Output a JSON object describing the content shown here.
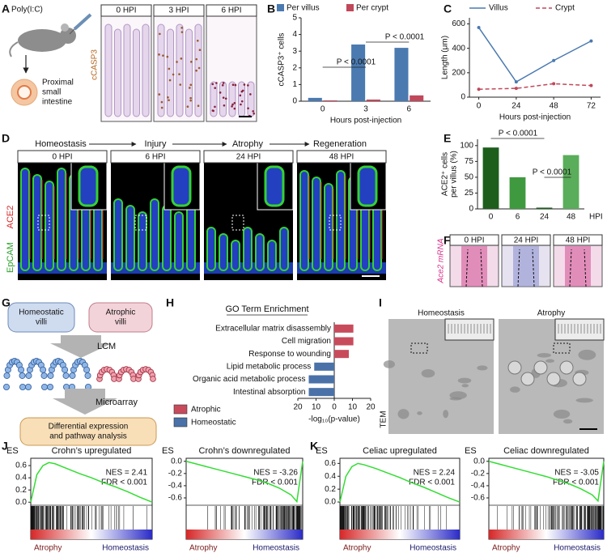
{
  "panel_letters": [
    "A",
    "B",
    "C",
    "D",
    "E",
    "F",
    "G",
    "H",
    "I",
    "J",
    "K"
  ],
  "panel_a": {
    "treatment": "Poly(I:C)",
    "tissue": [
      "Proximal",
      "small",
      "intestine"
    ],
    "stain": "cCASP3",
    "images": [
      "0 HPI",
      "3 HPI",
      "6 HPI"
    ]
  },
  "panel_d": {
    "stages": [
      "Homeostasis",
      "Injury",
      "Atrophy",
      "Regeneration"
    ],
    "images": [
      "0 HPI",
      "6 HPI",
      "24 HPI",
      "48 HPI"
    ],
    "stains": [
      "EpCAM",
      "ACE2"
    ]
  },
  "panel_f": {
    "images": [
      "0 HPI",
      "24 HPI",
      "48 HPI"
    ],
    "stain": "Ace2 mRNA"
  },
  "panel_g": {
    "homeostatic": [
      "Homeostatic",
      "villi"
    ],
    "atrophic": [
      "Atrophic",
      "villi"
    ],
    "step1": "LCM",
    "step2": "Microarray",
    "result": [
      "Differential expression",
      "and pathway analysis"
    ]
  },
  "panel_i": {
    "images": [
      "Homeostasis",
      "Atrophy"
    ],
    "method": "TEM"
  },
  "chart_data": [
    {
      "type": "bar",
      "ylabel": "cCASP3⁺ cells",
      "xlabel": "Hours post-injection",
      "categories": [
        "0",
        "3",
        "6"
      ],
      "series": [
        {
          "name": "Per villus",
          "color": "#4a7ab0",
          "values": [
            0.2,
            3.4,
            3.2
          ]
        },
        {
          "name": "Per crypt",
          "color": "#c0485a",
          "values": [
            0.05,
            0.1,
            0.35
          ]
        }
      ],
      "ylim": [
        0,
        5
      ],
      "yticks": [
        0,
        1,
        2,
        3,
        4,
        5
      ],
      "annotations": [
        "P < 0.0001",
        "P < 0.0001"
      ]
    },
    {
      "type": "line",
      "ylabel": "Length (μm)",
      "xlabel": "Hours post-injection",
      "x": [
        0,
        24,
        48,
        72
      ],
      "xlim": [
        -6,
        78
      ],
      "xticks": [
        0,
        24,
        48,
        72
      ],
      "ylim": [
        0,
        650
      ],
      "yticks": [
        0,
        200,
        400,
        600
      ],
      "series": [
        {
          "name": "Villus",
          "color": "#4a7ab0",
          "dash": false,
          "values": [
            570,
            125,
            300,
            460
          ]
        },
        {
          "name": "Crypt",
          "color": "#c0485a",
          "dash": true,
          "values": [
            65,
            72,
            110,
            95
          ]
        }
      ]
    },
    {
      "type": "bar",
      "ylabel": [
        "ACE2⁺ cells",
        "per villus (%)"
      ],
      "xlabel": "HPI",
      "categories": [
        "0",
        "6",
        "24",
        "48"
      ],
      "values": [
        97,
        50,
        2,
        85
      ],
      "colors": [
        "#1d5e1d",
        "#3f9a3f",
        "#1d5e1d",
        "#5aad5a"
      ],
      "ylim": [
        0,
        110
      ],
      "yticks": [
        0,
        25,
        50,
        75,
        100
      ],
      "annotations": [
        "P < 0.0001",
        "P < 0.0001"
      ]
    },
    {
      "type": "hbar",
      "title": "GO Term Enrichment",
      "xlabel": "-log₁₀(p-value)",
      "categories": [
        "Extracellular matrix disassembly",
        "Cell migration",
        "Response to wounding",
        "Lipid metabolic process",
        "Organic acid metabolic process",
        "Intestinal absorption"
      ],
      "series": [
        {
          "name": "Atrophic",
          "color": "#c84b5c",
          "values": [
            10.5,
            10.5,
            8,
            null,
            null,
            null
          ]
        },
        {
          "name": "Homeostatic",
          "color": "#4a72a8",
          "values": [
            null,
            null,
            null,
            -11,
            -14,
            -14
          ]
        }
      ],
      "xlim": [
        -20,
        20
      ],
      "xticks": [
        {
          "value": -20,
          "label": "20"
        },
        {
          "value": -10,
          "label": "10"
        },
        0,
        10,
        20
      ]
    },
    {
      "type": "gsea",
      "title": "Crohn’s upregulated",
      "ylabel": "ES",
      "stats": [
        "NES = 2.41",
        "FDR < 0.001"
      ],
      "x": [
        0,
        5,
        10,
        15,
        20,
        30,
        40,
        50,
        60,
        70,
        80,
        90,
        100
      ],
      "values": [
        0,
        0.45,
        0.6,
        0.65,
        0.63,
        0.55,
        0.47,
        0.4,
        0.32,
        0.25,
        0.17,
        0.08,
        0
      ],
      "xlim": [
        0,
        100
      ],
      "ylim": [
        -0.05,
        0.72
      ],
      "yticks": [
        {
          "value": 0,
          "label": "0.0"
        },
        {
          "value": 0.2,
          "label": "0.2"
        },
        {
          "value": 0.4,
          "label": "0.4"
        },
        {
          "value": 0.6,
          "label": "0.6"
        }
      ],
      "color": "#33dd33",
      "rank_labels": [
        "Atrophy",
        "Homeostasis"
      ]
    },
    {
      "type": "gsea",
      "title": "Crohn’s downregulated",
      "ylabel": "ES",
      "stats": [
        "NES = -3.26",
        "FDR < 0.001"
      ],
      "x": [
        0,
        10,
        20,
        30,
        40,
        50,
        60,
        70,
        80,
        90,
        95,
        100
      ],
      "values": [
        0,
        -0.05,
        -0.1,
        -0.15,
        -0.2,
        -0.25,
        -0.3,
        -0.36,
        -0.44,
        -0.55,
        -0.66,
        0
      ],
      "xlim": [
        0,
        100
      ],
      "ylim": [
        -0.72,
        0.05
      ],
      "yticks": [
        {
          "value": 0,
          "label": "0.0"
        },
        {
          "value": -0.2,
          "label": "-0.2"
        },
        {
          "value": -0.4,
          "label": "-0.4"
        },
        {
          "value": -0.6,
          "label": "-0.6"
        }
      ],
      "color": "#33dd33",
      "rank_labels": [
        "Atrophy",
        "Homeostasis"
      ]
    },
    {
      "type": "gsea",
      "title": "Celiac upregulated",
      "ylabel": "ES",
      "stats": [
        "NES = 2.24",
        "FDR < 0.001"
      ],
      "x": [
        0,
        5,
        10,
        15,
        20,
        30,
        40,
        50,
        60,
        70,
        80,
        90,
        100
      ],
      "values": [
        0,
        0.4,
        0.55,
        0.6,
        0.58,
        0.52,
        0.45,
        0.38,
        0.3,
        0.23,
        0.15,
        0.07,
        0
      ],
      "xlim": [
        0,
        100
      ],
      "ylim": [
        -0.05,
        0.68
      ],
      "yticks": [
        {
          "value": 0,
          "label": "0.0"
        },
        {
          "value": 0.2,
          "label": "0.2"
        },
        {
          "value": 0.4,
          "label": "0.4"
        },
        {
          "value": 0.6,
          "label": "0.6"
        }
      ],
      "color": "#33dd33",
      "rank_labels": [
        "Atrophy",
        "Homeostasis"
      ]
    },
    {
      "type": "gsea",
      "title": "Celiac downregulated",
      "ylabel": "ES",
      "stats": [
        "NES = -3.05",
        "FDR < 0.001"
      ],
      "x": [
        0,
        10,
        20,
        30,
        40,
        50,
        60,
        70,
        80,
        90,
        95,
        100
      ],
      "values": [
        0,
        -0.05,
        -0.1,
        -0.15,
        -0.2,
        -0.25,
        -0.31,
        -0.37,
        -0.45,
        -0.55,
        -0.65,
        0
      ],
      "xlim": [
        0,
        100
      ],
      "ylim": [
        -0.72,
        0.05
      ],
      "yticks": [
        {
          "value": 0,
          "label": "0.0"
        },
        {
          "value": -0.2,
          "label": "-0.2"
        },
        {
          "value": -0.4,
          "label": "-0.4"
        },
        {
          "value": -0.6,
          "label": "-0.6"
        }
      ],
      "color": "#33dd33",
      "rank_labels": [
        "Atrophy",
        "Homeostasis"
      ]
    }
  ]
}
